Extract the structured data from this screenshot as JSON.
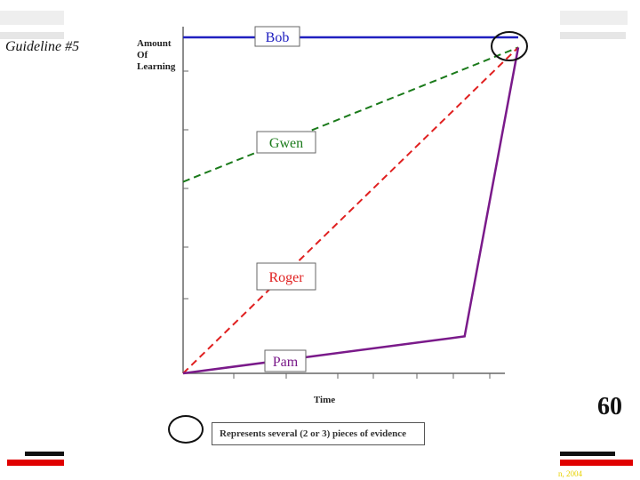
{
  "slide": {
    "title": "Guideline #5",
    "page_number": "60",
    "footer_text": "n, 2004"
  },
  "legend": {
    "text": "Represents several (2 or 3) pieces of evidence"
  },
  "colors": {
    "bob": "#2020c0",
    "gwen": "#1a7a1a",
    "roger": "#e02020",
    "pam": "#7a1a8a",
    "accent_red": "#e00000"
  },
  "chart_data": {
    "type": "line",
    "xlabel": "Time",
    "ylabel": "Amount Of Learning",
    "ylabel_lines": [
      "Amount",
      "Of",
      "Learning"
    ],
    "xlim": [
      0,
      1
    ],
    "ylim": [
      0,
      1
    ],
    "grid": false,
    "series": [
      {
        "name": "Bob",
        "style": "solid",
        "color": "#2020c0",
        "x": [
          0,
          1
        ],
        "y": [
          1.0,
          1.0
        ]
      },
      {
        "name": "Gwen",
        "style": "dashed",
        "color": "#1a7a1a",
        "x": [
          0,
          1
        ],
        "y": [
          0.57,
          0.97
        ]
      },
      {
        "name": "Roger",
        "style": "dashed",
        "color": "#e02020",
        "x": [
          0,
          1
        ],
        "y": [
          0.0,
          0.97
        ]
      },
      {
        "name": "Pam",
        "style": "solid",
        "color": "#7a1a8a",
        "x": [
          0,
          0.84,
          1
        ],
        "y": [
          0.0,
          0.11,
          0.97
        ]
      }
    ]
  }
}
